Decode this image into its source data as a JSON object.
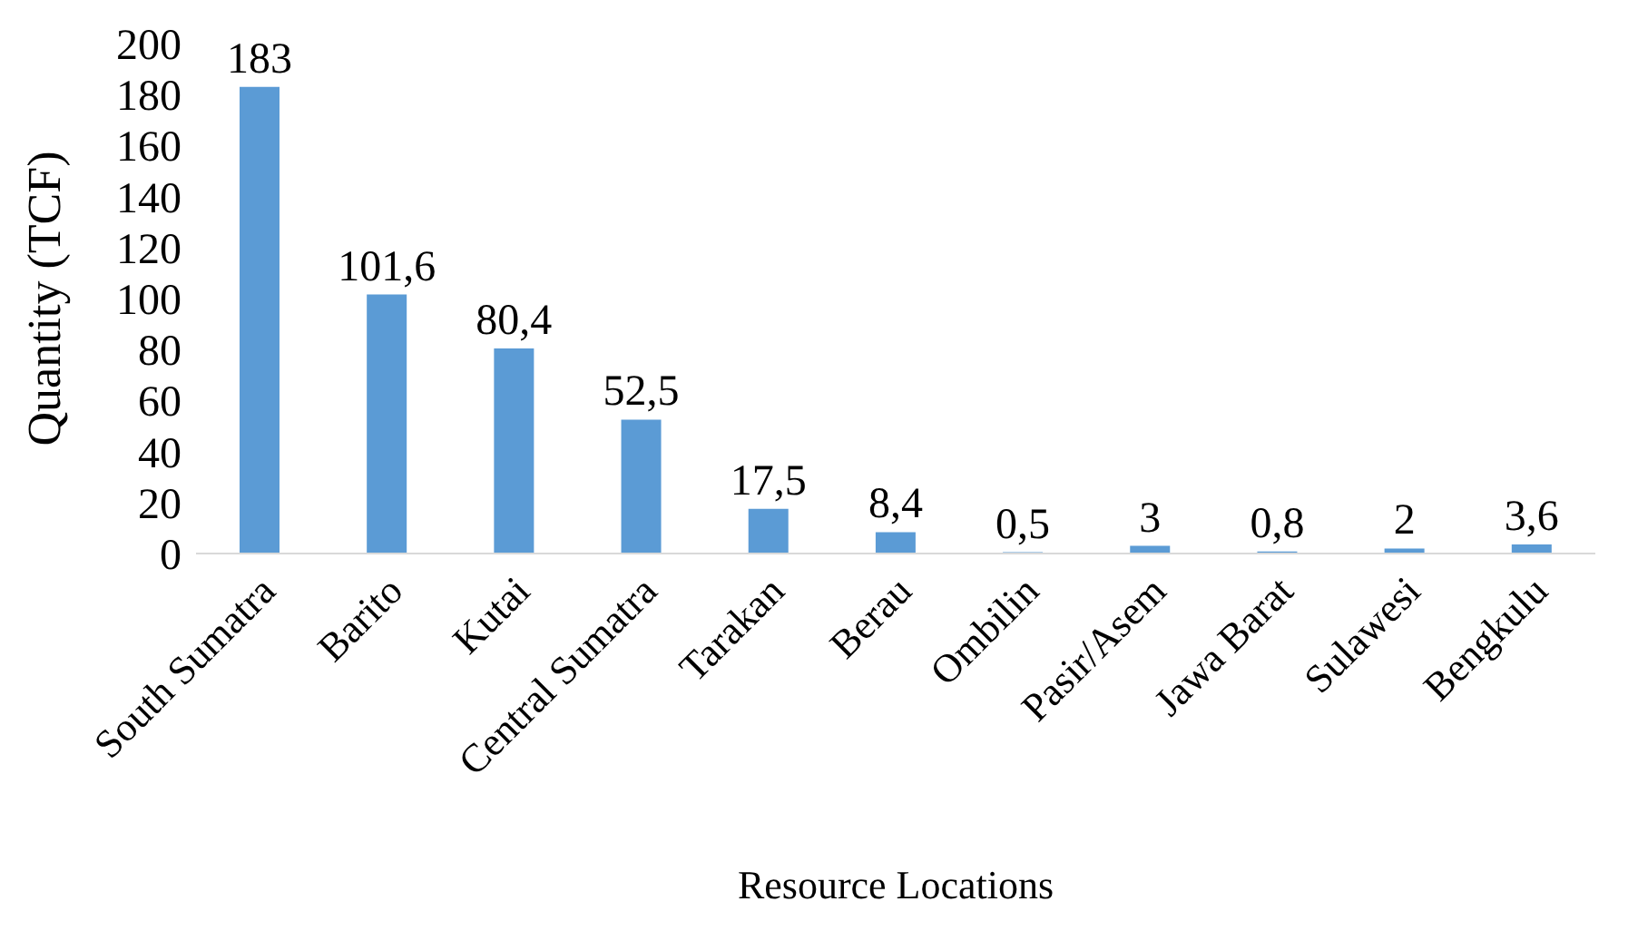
{
  "chart_data": {
    "type": "bar",
    "xlabel": "Resource Locations",
    "ylabel": "Quantity (TCF)",
    "categories": [
      "South Sumatra",
      "Barito",
      "Kutai",
      "Central Sumatra",
      "Tarakan",
      "Berau",
      "Ombilin",
      "Pasir/Asem",
      "Jawa Barat",
      "Sulawesi",
      "Bengkulu"
    ],
    "values": [
      183,
      101.6,
      80.4,
      52.5,
      17.5,
      8.4,
      0.5,
      3,
      0.8,
      2,
      3.6
    ],
    "value_labels": [
      "183",
      "101,6",
      "80,4",
      "52,5",
      "17,5",
      "8,4",
      "0,5",
      "3",
      "0,8",
      "2",
      "3,6"
    ],
    "color": "#5b9bd5",
    "ylim": [
      0,
      200
    ],
    "yticks": [
      0,
      20,
      40,
      60,
      80,
      100,
      120,
      140,
      160,
      180,
      200
    ]
  }
}
